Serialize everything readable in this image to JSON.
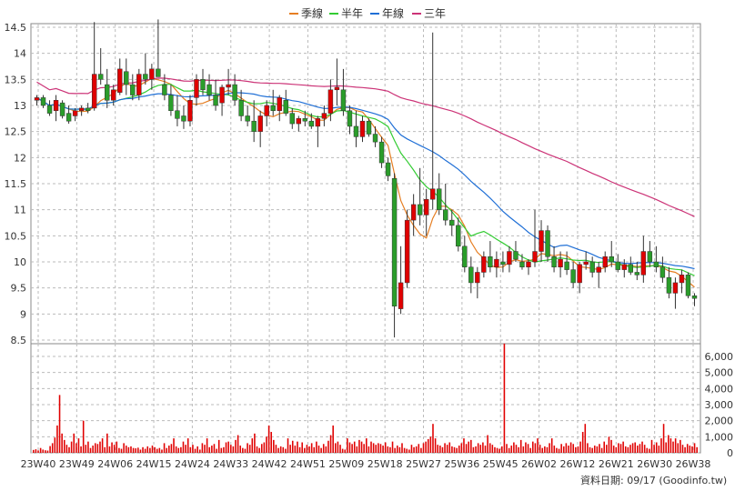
{
  "chart_data": {
    "type": "candlestick_with_volume",
    "legend": [
      {
        "name": "季線",
        "color": "#e67e22"
      },
      {
        "name": "半年",
        "color": "#33cc33"
      },
      {
        "name": "年線",
        "color": "#1f6fd6"
      },
      {
        "name": "三年",
        "color": "#cc3377"
      }
    ],
    "price_axis": {
      "ylim": [
        8.5,
        14.5
      ],
      "ticks": [
        8.5,
        9,
        9.5,
        10,
        10.5,
        11,
        11.5,
        12,
        12.5,
        13,
        13.5,
        14,
        14.5
      ]
    },
    "volume_axis": {
      "ylim": [
        0,
        6000
      ],
      "ticks": [
        0,
        1000,
        2000,
        3000,
        4000,
        5000,
        6000
      ],
      "tick_labels": [
        "0",
        "1,000",
        "2,000",
        "3,000",
        "4,000",
        "5,000",
        "6,000"
      ]
    },
    "x_labels": [
      "23W40",
      "23W49",
      "24W06",
      "24W15",
      "24W24",
      "24W33",
      "24W42",
      "24W51",
      "25W09",
      "25W18",
      "25W27",
      "25W36",
      "25W45",
      "26W02",
      "26W12",
      "26W21",
      "26W30",
      "26W38"
    ],
    "footer": "資料日期: 09/17",
    "source": "(Goodinfo.tw)",
    "candles": [
      [
        13.1,
        13.2,
        13.0,
        13.15
      ],
      [
        13.15,
        13.2,
        12.95,
        13.0
      ],
      [
        13.0,
        13.1,
        12.8,
        12.85
      ],
      [
        12.9,
        13.2,
        12.7,
        13.1
      ],
      [
        13.05,
        13.1,
        12.75,
        12.8
      ],
      [
        12.85,
        13.0,
        12.65,
        12.7
      ],
      [
        12.8,
        12.95,
        12.7,
        12.9
      ],
      [
        12.9,
        13.0,
        12.8,
        12.95
      ],
      [
        12.95,
        13.05,
        12.85,
        12.9
      ],
      [
        12.95,
        14.6,
        12.9,
        13.6
      ],
      [
        13.6,
        14.1,
        13.4,
        13.5
      ],
      [
        13.4,
        13.7,
        12.95,
        13.1
      ],
      [
        13.1,
        13.4,
        13.0,
        13.3
      ],
      [
        13.25,
        13.9,
        13.2,
        13.7
      ],
      [
        13.65,
        13.9,
        13.2,
        13.4
      ],
      [
        13.4,
        13.6,
        13.1,
        13.2
      ],
      [
        13.2,
        13.7,
        13.1,
        13.6
      ],
      [
        13.6,
        14.0,
        13.4,
        13.5
      ],
      [
        13.5,
        13.8,
        13.3,
        13.7
      ],
      [
        13.7,
        14.65,
        13.6,
        13.55
      ],
      [
        13.4,
        13.6,
        13.1,
        13.2
      ],
      [
        13.2,
        13.4,
        12.8,
        12.9
      ],
      [
        12.9,
        13.2,
        12.6,
        12.75
      ],
      [
        12.8,
        13.0,
        12.55,
        12.7
      ],
      [
        12.7,
        13.2,
        12.6,
        13.1
      ],
      [
        13.15,
        13.6,
        13.0,
        13.5
      ],
      [
        13.5,
        13.7,
        13.2,
        13.3
      ],
      [
        13.4,
        13.6,
        13.1,
        13.2
      ],
      [
        13.2,
        13.5,
        12.9,
        13.0
      ],
      [
        13.05,
        13.4,
        12.8,
        13.35
      ],
      [
        13.35,
        13.7,
        13.2,
        13.4
      ],
      [
        13.4,
        13.6,
        13.0,
        13.1
      ],
      [
        13.1,
        13.3,
        12.7,
        12.8
      ],
      [
        12.8,
        13.0,
        12.6,
        12.7
      ],
      [
        12.7,
        13.1,
        12.3,
        12.5
      ],
      [
        12.5,
        12.9,
        12.2,
        12.8
      ],
      [
        12.8,
        13.1,
        12.6,
        13.0
      ],
      [
        13.0,
        13.3,
        12.8,
        12.9
      ],
      [
        12.9,
        13.2,
        12.7,
        13.15
      ],
      [
        13.1,
        13.3,
        12.8,
        12.85
      ],
      [
        12.85,
        12.95,
        12.55,
        12.65
      ],
      [
        12.65,
        12.8,
        12.5,
        12.75
      ],
      [
        12.75,
        12.9,
        12.6,
        12.7
      ],
      [
        12.7,
        12.85,
        12.55,
        12.6
      ],
      [
        12.6,
        12.8,
        12.2,
        12.75
      ],
      [
        12.75,
        13.0,
        12.6,
        12.85
      ],
      [
        12.85,
        13.5,
        12.7,
        13.3
      ],
      [
        13.3,
        13.9,
        13.0,
        13.35
      ],
      [
        13.3,
        13.7,
        12.8,
        12.9
      ],
      [
        12.9,
        13.0,
        12.45,
        12.6
      ],
      [
        12.6,
        12.9,
        12.2,
        12.4
      ],
      [
        12.4,
        12.8,
        12.3,
        12.7
      ],
      [
        12.7,
        12.75,
        12.4,
        12.45
      ],
      [
        12.45,
        12.6,
        12.2,
        12.3
      ],
      [
        12.3,
        12.4,
        11.8,
        11.9
      ],
      [
        11.9,
        12.0,
        11.55,
        11.65
      ],
      [
        11.6,
        11.7,
        8.55,
        9.15
      ],
      [
        9.1,
        10.3,
        9.0,
        9.6
      ],
      [
        9.6,
        11.0,
        9.5,
        10.8
      ],
      [
        10.8,
        11.3,
        10.5,
        11.1
      ],
      [
        11.1,
        11.8,
        10.7,
        10.9
      ],
      [
        10.9,
        11.4,
        10.5,
        11.2
      ],
      [
        11.2,
        14.4,
        11.0,
        11.4
      ],
      [
        11.4,
        11.7,
        10.9,
        11.0
      ],
      [
        11.0,
        11.5,
        10.7,
        10.8
      ],
      [
        10.8,
        11.0,
        10.5,
        10.7
      ],
      [
        10.7,
        10.85,
        10.2,
        10.3
      ],
      [
        10.3,
        10.5,
        9.8,
        9.9
      ],
      [
        9.9,
        10.1,
        9.4,
        9.6
      ],
      [
        9.6,
        9.9,
        9.3,
        9.8
      ],
      [
        9.8,
        10.2,
        9.7,
        10.1
      ],
      [
        10.1,
        10.4,
        9.8,
        9.9
      ],
      [
        9.9,
        10.2,
        9.7,
        10.05
      ],
      [
        10.0,
        10.2,
        9.8,
        9.95
      ],
      [
        9.95,
        10.3,
        9.8,
        10.2
      ],
      [
        10.2,
        10.4,
        10.0,
        10.05
      ],
      [
        10.0,
        10.15,
        9.85,
        9.9
      ],
      [
        9.9,
        10.05,
        9.75,
        10.0
      ],
      [
        10.0,
        11.0,
        9.9,
        10.2
      ],
      [
        10.2,
        10.8,
        10.0,
        10.6
      ],
      [
        10.6,
        10.7,
        10.0,
        10.1
      ],
      [
        10.1,
        10.3,
        9.8,
        9.9
      ],
      [
        9.9,
        10.2,
        9.7,
        10.05
      ],
      [
        10.0,
        10.2,
        9.75,
        9.85
      ],
      [
        9.85,
        10.0,
        9.5,
        9.6
      ],
      [
        9.6,
        10.0,
        9.4,
        9.95
      ],
      [
        9.95,
        10.2,
        9.85,
        10.0
      ],
      [
        10.0,
        10.1,
        9.7,
        9.8
      ],
      [
        9.8,
        10.0,
        9.5,
        9.9
      ],
      [
        9.9,
        10.2,
        9.8,
        10.1
      ],
      [
        10.1,
        10.4,
        9.9,
        10.0
      ],
      [
        10.0,
        10.15,
        9.8,
        9.85
      ],
      [
        9.85,
        10.05,
        9.7,
        9.95
      ],
      [
        9.95,
        10.1,
        9.75,
        9.8
      ],
      [
        9.8,
        10.0,
        9.65,
        9.75
      ],
      [
        9.75,
        10.5,
        9.6,
        10.2
      ],
      [
        10.2,
        10.4,
        9.9,
        10.0
      ],
      [
        10.0,
        10.3,
        9.8,
        9.9
      ],
      [
        9.9,
        10.1,
        9.6,
        9.7
      ],
      [
        9.7,
        9.9,
        9.3,
        9.4
      ],
      [
        9.4,
        9.7,
        9.1,
        9.6
      ],
      [
        9.6,
        9.85,
        9.4,
        9.75
      ],
      [
        9.75,
        9.8,
        9.3,
        9.35
      ],
      [
        9.35,
        9.4,
        9.15,
        9.3
      ]
    ],
    "volume": [
      180,
      220,
      150,
      300,
      200,
      160,
      140,
      420,
      600,
      950,
      1700,
      3600,
      1200,
      800,
      500,
      350,
      700,
      1200,
      600,
      900,
      400,
      2000,
      500,
      700,
      300,
      450,
      600,
      550,
      700,
      900,
      350,
      1200,
      400,
      650,
      500,
      700,
      300,
      250,
      600,
      450,
      350,
      400,
      300,
      280,
      320,
      200,
      350,
      250,
      400,
      300,
      450,
      350,
      250,
      300,
      200,
      600,
      300,
      450,
      550,
      900,
      400,
      300,
      350,
      700,
      500,
      900,
      350,
      500,
      250,
      400,
      200,
      600,
      500,
      900,
      350,
      450,
      550,
      250,
      800,
      300,
      350,
      650,
      700,
      500,
      400,
      800,
      1100,
      450,
      300,
      250,
      600,
      500,
      900,
      1200,
      400,
      300,
      550,
      650,
      1000,
      1700,
      1300,
      800,
      500,
      300,
      400,
      350,
      250,
      900,
      500,
      750,
      450,
      700,
      350,
      650,
      300,
      500,
      400,
      600,
      350,
      700,
      450,
      300,
      550,
      400,
      750,
      1100,
      1700,
      600,
      700,
      500,
      250,
      200,
      900,
      650,
      550,
      700,
      400,
      800,
      700,
      550,
      900,
      400,
      700,
      600,
      500,
      600,
      550,
      450,
      650,
      400,
      350,
      700,
      300,
      450,
      350,
      600,
      300,
      250,
      200,
      500,
      350,
      400,
      550,
      300,
      600,
      700,
      850,
      1000,
      1800,
      900,
      500,
      450,
      350,
      600,
      500,
      650,
      400,
      350,
      300,
      450,
      600,
      900,
      550,
      700,
      800,
      350,
      400,
      600,
      500,
      650,
      450,
      1100,
      600,
      500,
      350,
      300,
      250,
      400,
      6800,
      550,
      300,
      450,
      650,
      500,
      350,
      800,
      400,
      650,
      550,
      300,
      700,
      600,
      900,
      500,
      300,
      400,
      350,
      600,
      900,
      450,
      300,
      250,
      550,
      400,
      600,
      450,
      650,
      550,
      350,
      400,
      700,
      1300,
      1800,
      600,
      350,
      300,
      450,
      400,
      550,
      300,
      700,
      500,
      1000,
      800,
      450,
      350,
      600,
      550,
      700,
      400,
      350,
      500,
      600,
      650,
      450,
      550,
      700,
      500,
      300,
      250,
      800,
      500,
      650,
      450,
      900,
      1800,
      650,
      1100,
      900,
      700,
      900,
      600,
      800,
      500,
      350,
      550,
      450,
      400,
      600,
      350
    ]
  }
}
